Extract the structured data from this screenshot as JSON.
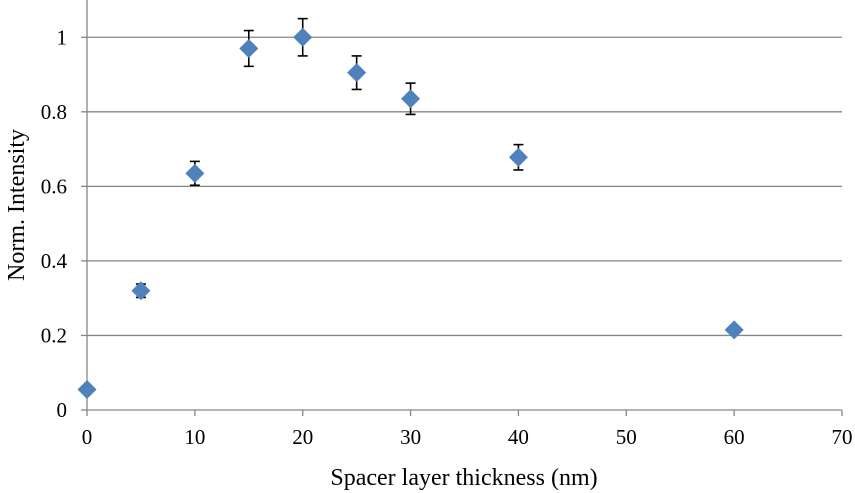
{
  "chart_data": {
    "type": "scatter",
    "title": "",
    "xlabel": "Spacer layer thickness (nm)",
    "ylabel": "Norm. Intensity",
    "xlim": [
      0,
      70
    ],
    "ylim": [
      0,
      1.1
    ],
    "x_ticks": [
      0,
      10,
      20,
      30,
      40,
      50,
      60,
      70
    ],
    "y_ticks": [
      0,
      0.2,
      0.4,
      0.6,
      0.8,
      1
    ],
    "x_tick_labels": [
      "0",
      "10",
      "20",
      "30",
      "40",
      "50",
      "60",
      "70"
    ],
    "y_tick_labels": [
      "0",
      "0.2",
      "0.4",
      "0.6",
      "0.8",
      "1"
    ],
    "grid": "horizontal",
    "legend": "none",
    "marker": "diamond",
    "marker_color": "#4f81bd",
    "series": [
      {
        "points": [
          {
            "x": 0,
            "y": 0.055,
            "err": null
          },
          {
            "x": 5,
            "y": 0.32,
            "err": 0.018
          },
          {
            "x": 10,
            "y": 0.635,
            "err": 0.032
          },
          {
            "x": 15,
            "y": 0.97,
            "err": 0.048
          },
          {
            "x": 20,
            "y": 1.0,
            "err": 0.05
          },
          {
            "x": 25,
            "y": 0.905,
            "err": 0.045
          },
          {
            "x": 30,
            "y": 0.835,
            "err": 0.042
          },
          {
            "x": 40,
            "y": 0.678,
            "err": 0.034
          },
          {
            "x": 60,
            "y": 0.215,
            "err": null
          }
        ]
      }
    ]
  }
}
